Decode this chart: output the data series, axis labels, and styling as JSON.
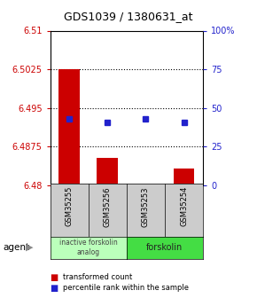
{
  "title": "GDS1039 / 1380631_at",
  "samples": [
    "GSM35255",
    "GSM35256",
    "GSM35253",
    "GSM35254"
  ],
  "bar_values": [
    6.5025,
    6.4853,
    6.4803,
    6.4832
  ],
  "bar_base": 6.48,
  "blue_values": [
    6.4928,
    6.4921,
    6.4928,
    6.4921
  ],
  "ylim_left": [
    6.48,
    6.51
  ],
  "ylim_right": [
    0,
    100
  ],
  "yticks_left": [
    6.48,
    6.4875,
    6.495,
    6.5025,
    6.51
  ],
  "ytick_labels_left": [
    "6.48",
    "6.4875",
    "6.495",
    "6.5025",
    "6.51"
  ],
  "yticks_right": [
    0,
    25,
    50,
    75,
    100
  ],
  "ytick_labels_right": [
    "0",
    "25",
    "50",
    "75",
    "100%"
  ],
  "bar_color": "#cc0000",
  "blue_color": "#2222cc",
  "bg_color": "#ffffff",
  "plot_bg": "#ffffff",
  "left_tick_color": "#cc0000",
  "right_tick_color": "#2222cc",
  "group_label_inactive": "inactive forskolin\nanalog",
  "group_label_active": "forskolin",
  "group_color_inactive": "#bbffbb",
  "group_color_active": "#44dd44",
  "sample_box_color": "#cccccc",
  "agent_label": "agent",
  "legend_red": "transformed count",
  "legend_blue": "percentile rank within the sample",
  "bar_width": 0.55
}
